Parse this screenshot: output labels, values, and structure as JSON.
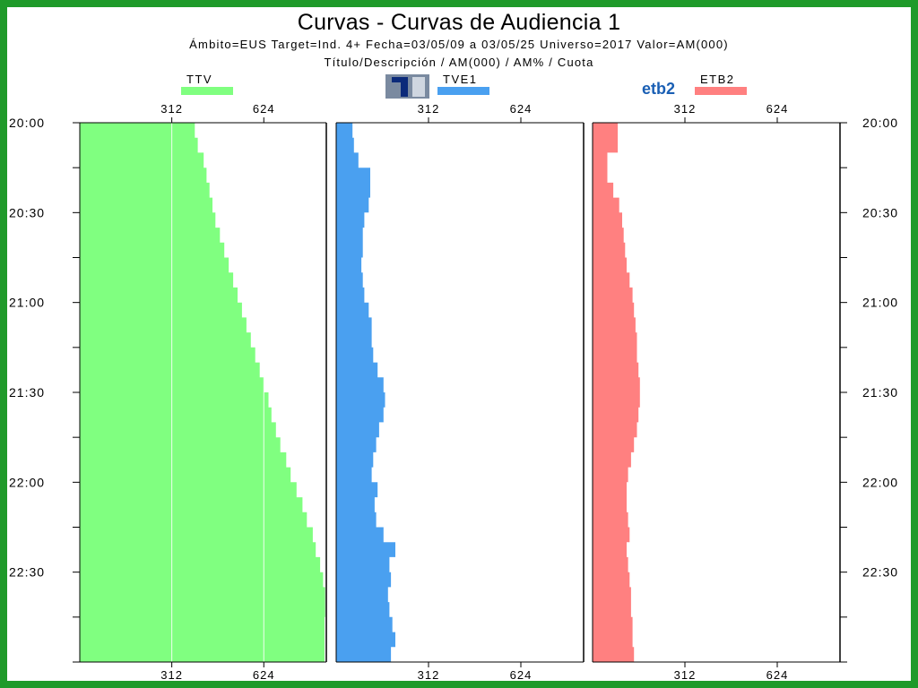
{
  "title": "Curvas - Curvas de Audiencia 1",
  "subtitle_1": "Ámbito=EUS  Target=Ind. 4+  Fecha=03/05/09 a 03/05/25  Universo=2017  Valor=AM(000)",
  "subtitle_2": "Título/Descripción / AM(000) / AM% / Cuota",
  "chart_data": {
    "type": "area",
    "orientation": "horizontal",
    "y_time_labels": [
      "20:00",
      "20:30",
      "21:00",
      "21:30",
      "22:00",
      "22:30"
    ],
    "y_range": [
      "20:00",
      "23:00"
    ],
    "x_tick_labels": [
      "312",
      "624"
    ],
    "x_ticks": [
      312,
      624
    ],
    "xlim": [
      0,
      836
    ],
    "grid": true,
    "sample_times": [
      "20:00",
      "20:05",
      "20:10",
      "20:15",
      "20:20",
      "20:25",
      "20:30",
      "20:35",
      "20:40",
      "20:45",
      "20:50",
      "20:55",
      "21:00",
      "21:05",
      "21:10",
      "21:15",
      "21:20",
      "21:25",
      "21:30",
      "21:35",
      "21:40",
      "21:45",
      "21:50",
      "21:55",
      "22:00",
      "22:05",
      "22:10",
      "22:15",
      "22:20",
      "22:25",
      "22:30",
      "22:35",
      "22:40",
      "22:45",
      "22:50",
      "22:55",
      "23:00"
    ],
    "series": [
      {
        "name": "TTV",
        "color": "#80ff80",
        "values": [
          390,
          400,
          420,
          430,
          440,
          450,
          460,
          475,
          490,
          505,
          520,
          535,
          550,
          565,
          580,
          595,
          610,
          625,
          640,
          650,
          665,
          680,
          700,
          715,
          735,
          755,
          770,
          790,
          800,
          815,
          825,
          832,
          832,
          830,
          830,
          830,
          828
        ]
      },
      {
        "name": "TVE1",
        "color": "#4aa0f0",
        "values": [
          55,
          60,
          75,
          115,
          115,
          110,
          95,
          90,
          90,
          85,
          90,
          95,
          110,
          120,
          120,
          125,
          140,
          160,
          165,
          160,
          145,
          135,
          125,
          120,
          140,
          130,
          135,
          160,
          200,
          180,
          185,
          175,
          180,
          190,
          200,
          185,
          180
        ]
      },
      {
        "name": "ETB2",
        "color": "#ff8080",
        "values": [
          85,
          85,
          50,
          50,
          70,
          90,
          100,
          105,
          110,
          115,
          125,
          135,
          140,
          145,
          150,
          150,
          155,
          160,
          160,
          155,
          150,
          140,
          130,
          120,
          115,
          115,
          120,
          125,
          115,
          120,
          125,
          130,
          130,
          135,
          135,
          140,
          140
        ]
      }
    ]
  },
  "legend": [
    {
      "name": "TTV",
      "logo": ""
    },
    {
      "name": "TVE1",
      "logo": "tve1-logo",
      "logo_text": ""
    },
    {
      "name": "ETB2",
      "logo": "etb2-logo",
      "logo_text": "etb2"
    }
  ]
}
